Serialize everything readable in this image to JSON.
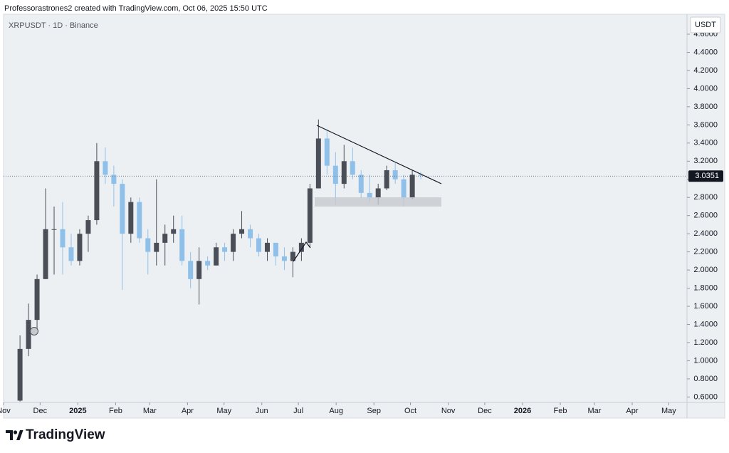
{
  "header": "Professorastrones2 created with TradingView.com, Oct 06, 2025 15:50 UTC",
  "footer": "TradingView",
  "chart_data": {
    "type": "candlestick",
    "title": "XRPUSDT · 1D · Binance",
    "axis_label": "USDT",
    "up_color": "#4a4e57",
    "down_color": "#8fc0ea",
    "x": [
      "2024-11-11",
      "2024-11-18",
      "2024-11-25",
      "2024-12-02",
      "2024-12-09",
      "2024-12-16",
      "2024-12-23",
      "2024-12-30",
      "2025-01-06",
      "2025-01-13",
      "2025-01-20",
      "2025-01-27",
      "2025-02-03",
      "2025-02-10",
      "2025-02-17",
      "2025-02-24",
      "2025-03-03",
      "2025-03-10",
      "2025-03-17",
      "2025-03-24",
      "2025-03-31",
      "2025-04-07",
      "2025-04-14",
      "2025-04-21",
      "2025-04-28",
      "2025-05-05",
      "2025-05-12",
      "2025-05-19",
      "2025-05-26",
      "2025-06-02",
      "2025-06-09",
      "2025-06-16",
      "2025-06-23",
      "2025-06-30",
      "2025-07-07",
      "2025-07-14",
      "2025-07-21",
      "2025-07-28",
      "2025-08-04",
      "2025-08-11",
      "2025-08-18",
      "2025-08-25",
      "2025-09-01",
      "2025-09-08",
      "2025-09-15",
      "2025-09-22",
      "2025-09-29",
      "2025-10-06"
    ],
    "open": [
      0.56,
      1.13,
      1.45,
      1.9,
      2.45,
      2.45,
      2.25,
      2.1,
      2.4,
      2.55,
      3.2,
      3.05,
      2.95,
      2.4,
      2.75,
      2.35,
      2.2,
      2.3,
      2.4,
      2.45,
      2.1,
      1.9,
      2.1,
      2.05,
      2.25,
      2.2,
      2.4,
      2.45,
      2.35,
      2.2,
      2.3,
      2.15,
      2.1,
      2.2,
      2.3,
      2.9,
      3.45,
      3.15,
      2.95,
      3.2,
      3.05,
      2.85,
      2.8,
      2.9,
      3.1,
      3.0,
      2.8,
      3.05
    ],
    "high": [
      1.28,
      1.63,
      1.95,
      2.9,
      2.7,
      2.75,
      2.4,
      2.45,
      2.6,
      3.4,
      3.35,
      3.15,
      3.0,
      2.8,
      2.8,
      2.45,
      3.0,
      2.5,
      2.6,
      2.6,
      2.2,
      2.25,
      2.15,
      2.3,
      2.3,
      2.45,
      2.65,
      2.5,
      2.4,
      2.35,
      2.3,
      2.25,
      2.25,
      2.35,
      2.95,
      3.66,
      3.55,
      3.3,
      3.38,
      3.35,
      3.1,
      3.05,
      2.95,
      3.15,
      3.18,
      3.05,
      3.1,
      3.08
    ],
    "low": [
      0.55,
      1.05,
      1.3,
      1.9,
      1.95,
      1.95,
      2.05,
      2.05,
      2.2,
      2.5,
      2.95,
      2.7,
      1.78,
      2.3,
      2.3,
      1.95,
      2.05,
      2.05,
      2.3,
      2.05,
      1.8,
      1.62,
      2.0,
      2.05,
      2.1,
      2.1,
      2.35,
      2.25,
      2.15,
      2.1,
      2.05,
      2.0,
      1.92,
      2.1,
      2.25,
      2.9,
      3.05,
      2.72,
      2.9,
      3.0,
      2.8,
      2.75,
      2.72,
      2.88,
      2.95,
      2.7,
      2.78,
      3.0
    ],
    "close": [
      1.13,
      1.45,
      1.9,
      2.45,
      2.45,
      2.25,
      2.1,
      2.4,
      2.55,
      3.2,
      3.05,
      2.95,
      2.4,
      2.75,
      2.35,
      2.2,
      2.3,
      2.4,
      2.45,
      2.1,
      1.9,
      2.1,
      2.05,
      2.25,
      2.2,
      2.4,
      2.45,
      2.35,
      2.2,
      2.3,
      2.15,
      2.1,
      2.2,
      2.3,
      2.9,
      3.45,
      3.15,
      2.95,
      3.2,
      3.05,
      2.85,
      2.8,
      2.9,
      3.1,
      3.0,
      2.8,
      3.05,
      3.04
    ],
    "last_price": 3.0351,
    "xlim": [
      "2024-11-01",
      "2026-05-16"
    ],
    "xticks": [
      {
        "value": "2024-11-01",
        "label": "Nov"
      },
      {
        "value": "2024-12-01",
        "label": "Dec"
      },
      {
        "value": "2025-01-01",
        "label": "2025"
      },
      {
        "value": "2025-02-01",
        "label": "Feb"
      },
      {
        "value": "2025-03-01",
        "label": "Mar"
      },
      {
        "value": "2025-04-01",
        "label": "Apr"
      },
      {
        "value": "2025-05-01",
        "label": "May"
      },
      {
        "value": "2025-06-01",
        "label": "Jun"
      },
      {
        "value": "2025-07-01",
        "label": "Jul"
      },
      {
        "value": "2025-08-01",
        "label": "Aug"
      },
      {
        "value": "2025-09-01",
        "label": "Sep"
      },
      {
        "value": "2025-10-01",
        "label": "Oct"
      },
      {
        "value": "2025-11-01",
        "label": "Nov"
      },
      {
        "value": "2025-12-01",
        "label": "Dec"
      },
      {
        "value": "2026-01-01",
        "label": "2026"
      },
      {
        "value": "2026-02-01",
        "label": "Feb"
      },
      {
        "value": "2026-03-01",
        "label": "Mar"
      },
      {
        "value": "2026-04-01",
        "label": "Apr"
      },
      {
        "value": "2026-05-01",
        "label": "May"
      }
    ],
    "ylim": [
      0.54,
      4.82
    ],
    "yticks": [
      {
        "value": 0.6,
        "label": "0.6000"
      },
      {
        "value": 0.8,
        "label": "0.8000"
      },
      {
        "value": 1.0,
        "label": "1.0000"
      },
      {
        "value": 1.2,
        "label": "1.2000"
      },
      {
        "value": 1.4,
        "label": "1.4000"
      },
      {
        "value": 1.6,
        "label": "1.6000"
      },
      {
        "value": 1.8,
        "label": "1.8000"
      },
      {
        "value": 2.0,
        "label": "2.0000"
      },
      {
        "value": 2.2,
        "label": "2.2000"
      },
      {
        "value": 2.4,
        "label": "2.4000"
      },
      {
        "value": 2.6,
        "label": "2.6000"
      },
      {
        "value": 2.8,
        "label": "2.8000"
      },
      {
        "value": 3.0,
        "label": "3.0000"
      },
      {
        "value": 3.2,
        "label": "3.2000"
      },
      {
        "value": 3.4,
        "label": "3.4000"
      },
      {
        "value": 3.6,
        "label": "3.6000"
      },
      {
        "value": 3.8,
        "label": "3.8000"
      },
      {
        "value": 4.0,
        "label": "4.0000"
      },
      {
        "value": 4.2,
        "label": "4.2000"
      },
      {
        "value": 4.4,
        "label": "4.4000"
      },
      {
        "value": 4.6,
        "label": "4.6000"
      }
    ]
  }
}
